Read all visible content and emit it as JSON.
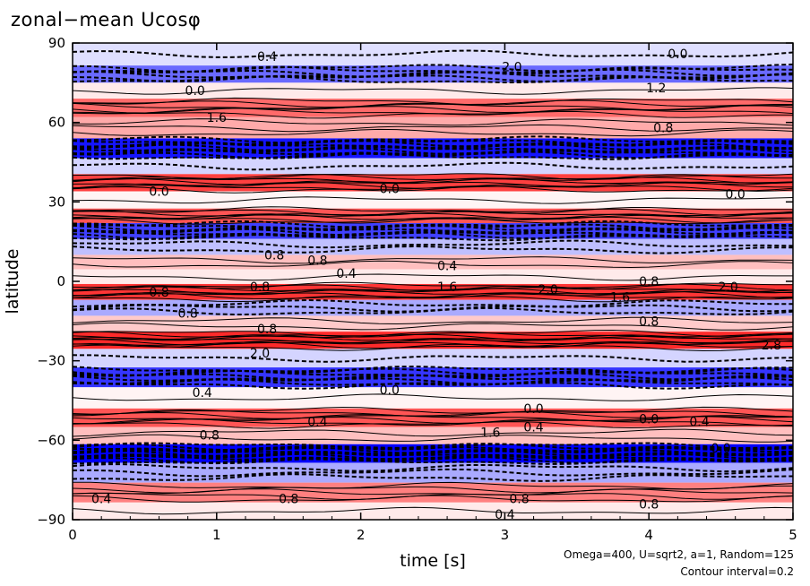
{
  "chart_data": {
    "type": "heatmap",
    "title": "zonal−mean Ucosφ",
    "xlabel": "time [s]",
    "ylabel": "latitude",
    "xlim": [
      0,
      5
    ],
    "ylim": [
      -90,
      90
    ],
    "xticks": [
      "0",
      "1",
      "2",
      "3",
      "4",
      "5"
    ],
    "yticks": [
      "90",
      "60",
      "30",
      "0",
      "−30",
      "−60",
      "−90"
    ],
    "contour_interval": 0.2,
    "colors": {
      "positive": "#ff0000",
      "negative": "#0000ff",
      "zero": "#ffffff"
    },
    "bands": [
      {
        "lat": 85,
        "value": -0.3
      },
      {
        "lat": 78,
        "value": -1.4
      },
      {
        "lat": 72,
        "value": 0.2
      },
      {
        "lat": 66,
        "value": 1.4
      },
      {
        "lat": 58,
        "value": 0.8
      },
      {
        "lat": 50,
        "value": -2.2
      },
      {
        "lat": 43,
        "value": -0.4
      },
      {
        "lat": 38,
        "value": 1.8
      },
      {
        "lat": 30,
        "value": 0.1
      },
      {
        "lat": 25,
        "value": 1.6
      },
      {
        "lat": 19,
        "value": -1.8
      },
      {
        "lat": 13,
        "value": -0.6
      },
      {
        "lat": 7,
        "value": 0.6
      },
      {
        "lat": 2,
        "value": 0.2
      },
      {
        "lat": -4,
        "value": 1.9
      },
      {
        "lat": -10,
        "value": -0.8
      },
      {
        "lat": -16,
        "value": 0.5
      },
      {
        "lat": -22,
        "value": 2.0
      },
      {
        "lat": -29,
        "value": -0.4
      },
      {
        "lat": -36,
        "value": -1.9
      },
      {
        "lat": -44,
        "value": 0.1
      },
      {
        "lat": -52,
        "value": 1.6
      },
      {
        "lat": -58,
        "value": 0.6
      },
      {
        "lat": -65,
        "value": -2.4
      },
      {
        "lat": -72,
        "value": -0.8
      },
      {
        "lat": -80,
        "value": 1.2
      },
      {
        "lat": -87,
        "value": 0.2
      }
    ],
    "contour_labels": [
      {
        "t": 1.35,
        "lat": 85,
        "text": "0.4"
      },
      {
        "t": 4.2,
        "lat": 86,
        "text": "0.0"
      },
      {
        "t": 3.05,
        "lat": 81,
        "text": "2.0"
      },
      {
        "t": 0.85,
        "lat": 72,
        "text": "0.0"
      },
      {
        "t": 4.05,
        "lat": 73,
        "text": "1.2"
      },
      {
        "t": 1.0,
        "lat": 62,
        "text": "1.6"
      },
      {
        "t": 4.1,
        "lat": 58,
        "text": "0.8"
      },
      {
        "t": 0.6,
        "lat": 34,
        "text": "0.0"
      },
      {
        "t": 2.2,
        "lat": 35,
        "text": "0.0"
      },
      {
        "t": 4.6,
        "lat": 33,
        "text": "0.0"
      },
      {
        "t": 1.4,
        "lat": 10,
        "text": "0.8"
      },
      {
        "t": 1.7,
        "lat": 8,
        "text": "0.8"
      },
      {
        "t": 2.6,
        "lat": 6,
        "text": "0.4"
      },
      {
        "t": 1.9,
        "lat": 3,
        "text": "0.4"
      },
      {
        "t": 1.3,
        "lat": -2,
        "text": "0.8"
      },
      {
        "t": 0.6,
        "lat": -4,
        "text": "0.8"
      },
      {
        "t": 2.6,
        "lat": -2,
        "text": "1.6"
      },
      {
        "t": 3.3,
        "lat": -3,
        "text": "2.0"
      },
      {
        "t": 3.8,
        "lat": -6,
        "text": "1.6"
      },
      {
        "t": 4.0,
        "lat": 0,
        "text": "0.8"
      },
      {
        "t": 4.55,
        "lat": -2,
        "text": "2.0"
      },
      {
        "t": 0.8,
        "lat": -12,
        "text": "0.8"
      },
      {
        "t": 1.35,
        "lat": -18,
        "text": "0.8"
      },
      {
        "t": 1.3,
        "lat": -27,
        "text": "2.0"
      },
      {
        "t": 4.0,
        "lat": -15,
        "text": "0.8"
      },
      {
        "t": 4.85,
        "lat": -24,
        "text": "2.8"
      },
      {
        "t": 0.9,
        "lat": -42,
        "text": "0.4"
      },
      {
        "t": 2.2,
        "lat": -41,
        "text": "0.0"
      },
      {
        "t": 3.2,
        "lat": -48,
        "text": "0.0"
      },
      {
        "t": 1.7,
        "lat": -53,
        "text": "0.4"
      },
      {
        "t": 2.9,
        "lat": -57,
        "text": "1.6"
      },
      {
        "t": 3.2,
        "lat": -55,
        "text": "0.4"
      },
      {
        "t": 4.0,
        "lat": -52,
        "text": "0.0"
      },
      {
        "t": 4.35,
        "lat": -53,
        "text": "0.4"
      },
      {
        "t": 0.95,
        "lat": -58,
        "text": "0.8"
      },
      {
        "t": 4.5,
        "lat": -63,
        "text": "0.0"
      },
      {
        "t": 0.2,
        "lat": -82,
        "text": "0.4"
      },
      {
        "t": 1.5,
        "lat": -82,
        "text": "0.8"
      },
      {
        "t": 3.1,
        "lat": -82,
        "text": "0.8"
      },
      {
        "t": 4.0,
        "lat": -84,
        "text": "0.8"
      },
      {
        "t": 3.0,
        "lat": -88,
        "text": "0.4"
      }
    ],
    "footnote": "Omega=400, U=sqrt2, a=1, Random=125",
    "footnote2": "Contour interval=0.2"
  }
}
